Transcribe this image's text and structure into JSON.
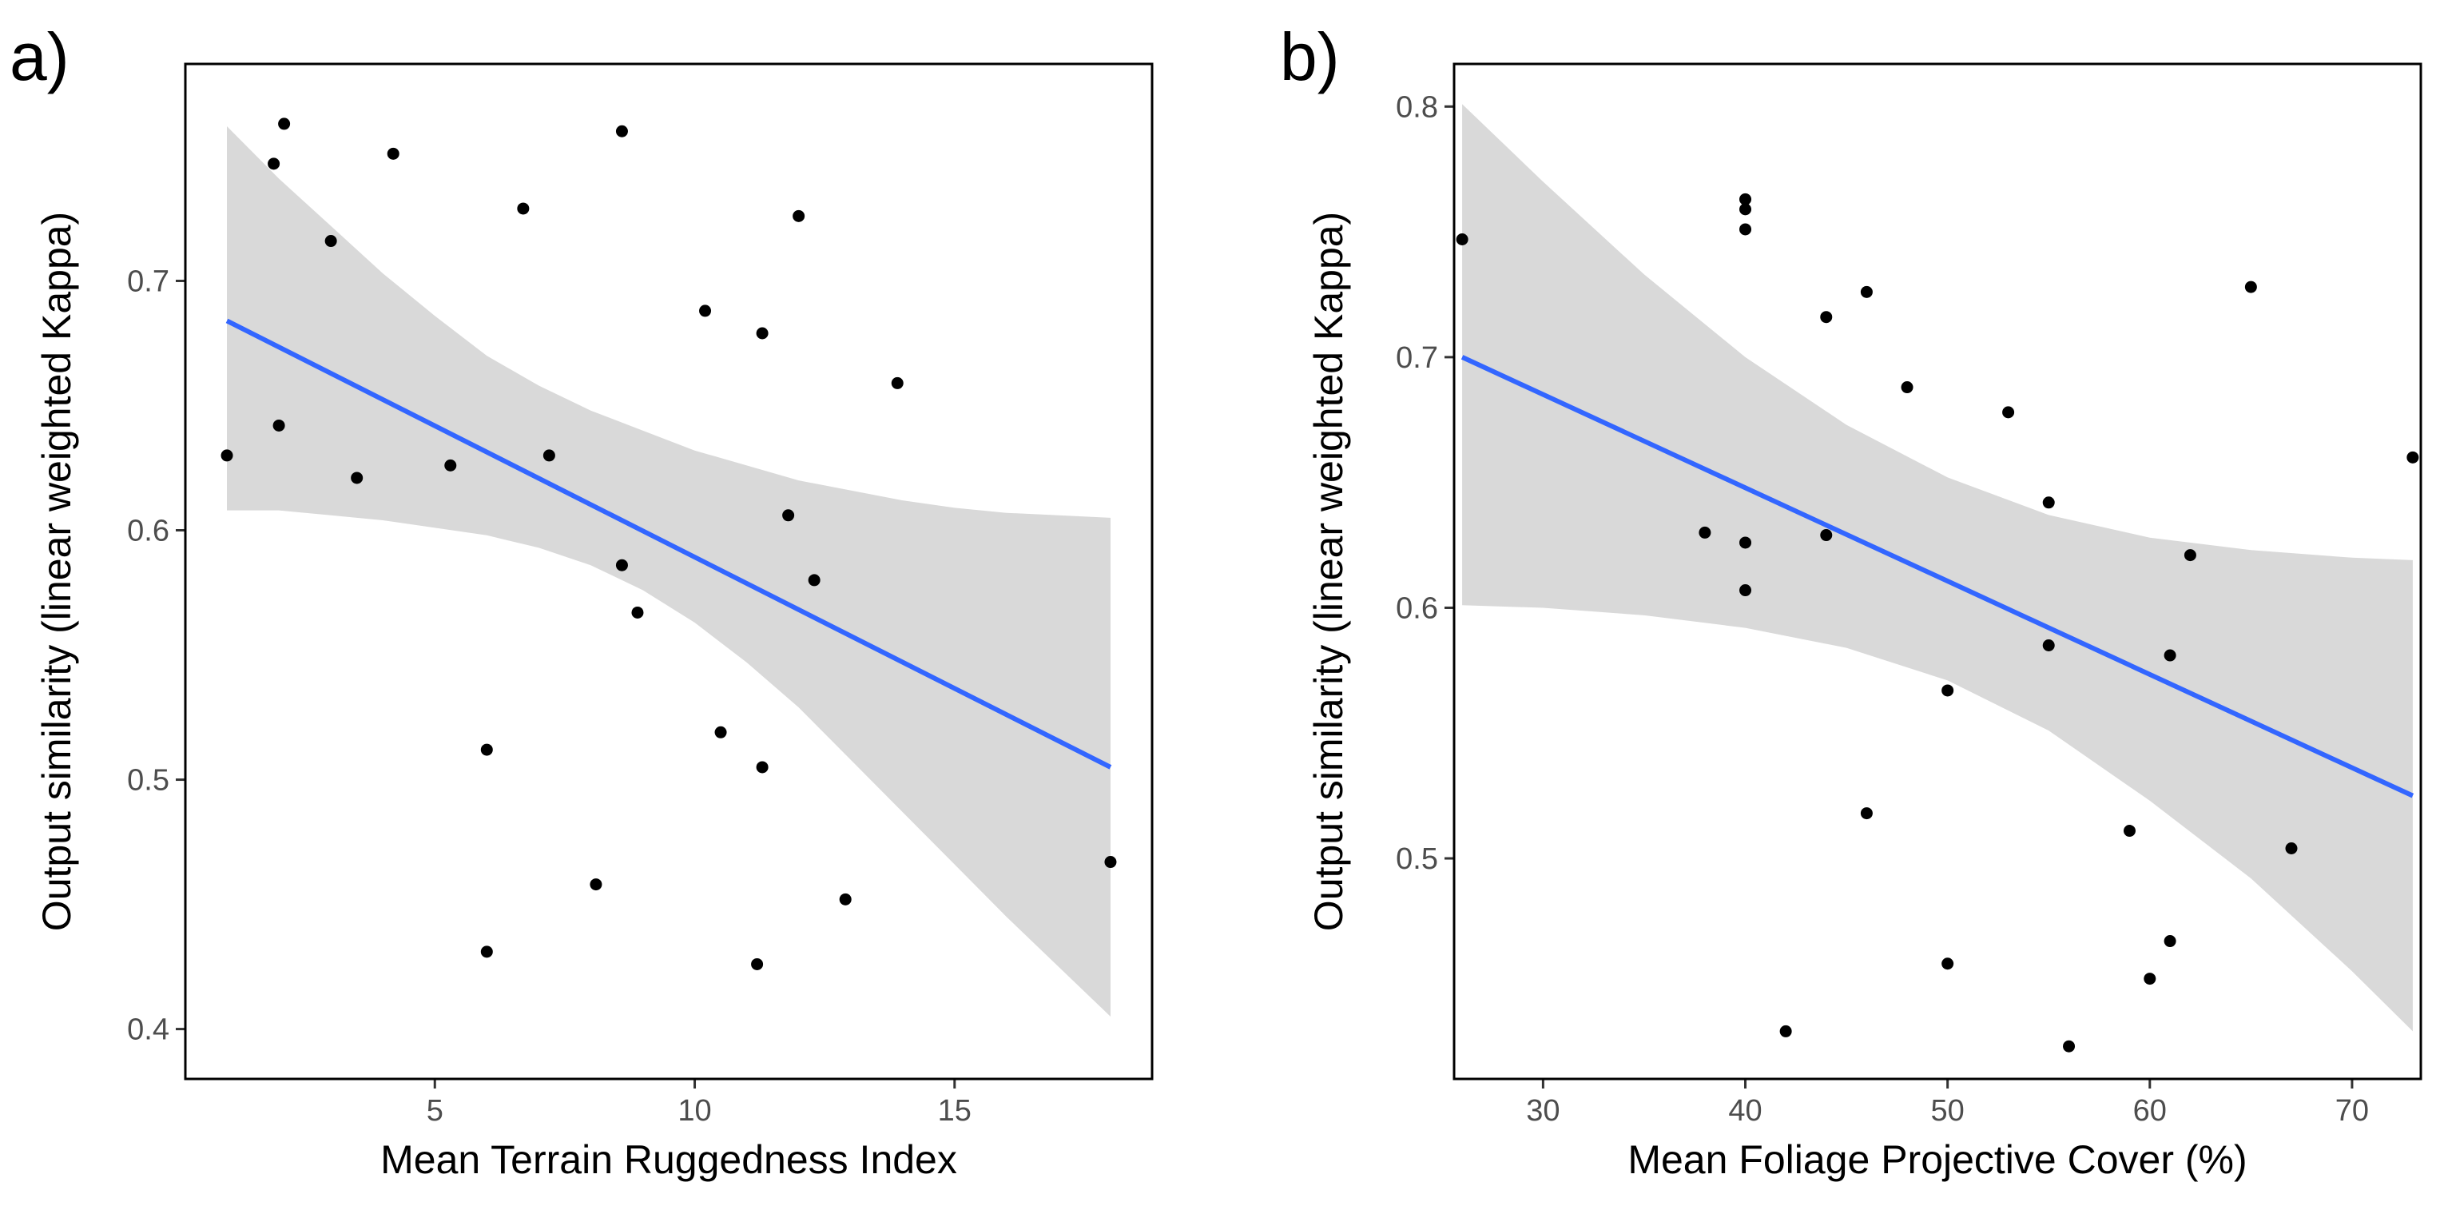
{
  "chart_data": [
    {
      "type": "scatter",
      "panel_label": "a)",
      "xlabel": "Mean Terrain Ruggedness Index",
      "ylabel": "Output similarity (linear weighted Kappa)",
      "xlim": [
        0.2,
        18.8
      ],
      "ylim": [
        0.38,
        0.787
      ],
      "xticks": [
        5,
        10,
        15
      ],
      "yticks": [
        0.4,
        0.5,
        0.6,
        0.7
      ],
      "grid": false,
      "points": [
        {
          "x": 1.0,
          "y": 0.63
        },
        {
          "x": 1.9,
          "y": 0.747
        },
        {
          "x": 2.1,
          "y": 0.763
        },
        {
          "x": 2.0,
          "y": 0.642
        },
        {
          "x": 3.0,
          "y": 0.716
        },
        {
          "x": 3.5,
          "y": 0.621
        },
        {
          "x": 4.2,
          "y": 0.751
        },
        {
          "x": 5.3,
          "y": 0.626
        },
        {
          "x": 6.0,
          "y": 0.512
        },
        {
          "x": 6.0,
          "y": 0.431
        },
        {
          "x": 6.7,
          "y": 0.729
        },
        {
          "x": 7.2,
          "y": 0.63
        },
        {
          "x": 8.1,
          "y": 0.458
        },
        {
          "x": 8.6,
          "y": 0.76
        },
        {
          "x": 8.6,
          "y": 0.586
        },
        {
          "x": 8.9,
          "y": 0.567
        },
        {
          "x": 10.2,
          "y": 0.688
        },
        {
          "x": 10.5,
          "y": 0.519
        },
        {
          "x": 11.3,
          "y": 0.679
        },
        {
          "x": 11.2,
          "y": 0.426
        },
        {
          "x": 11.3,
          "y": 0.505
        },
        {
          "x": 11.8,
          "y": 0.606
        },
        {
          "x": 12.0,
          "y": 0.726
        },
        {
          "x": 12.3,
          "y": 0.58
        },
        {
          "x": 12.9,
          "y": 0.452
        },
        {
          "x": 13.9,
          "y": 0.659
        },
        {
          "x": 18.0,
          "y": 0.467
        }
      ],
      "fit": {
        "x": [
          1.0,
          18.0
        ],
        "y": [
          0.684,
          0.505
        ]
      },
      "band": {
        "x": [
          1.0,
          2.0,
          3.0,
          4.0,
          5.0,
          6.0,
          7.0,
          8.0,
          9.0,
          10.0,
          11.0,
          12.0,
          13.0,
          14.0,
          15.0,
          16.0,
          17.0,
          18.0
        ],
        "upper": [
          0.762,
          0.741,
          0.722,
          0.703,
          0.686,
          0.67,
          0.658,
          0.648,
          0.64,
          0.632,
          0.626,
          0.62,
          0.616,
          0.612,
          0.609,
          0.607,
          0.606,
          0.605
        ],
        "lower": [
          0.608,
          0.608,
          0.606,
          0.604,
          0.601,
          0.598,
          0.593,
          0.586,
          0.576,
          0.563,
          0.547,
          0.529,
          0.508,
          0.487,
          0.466,
          0.445,
          0.425,
          0.405
        ]
      },
      "colors": {
        "points": "#000000",
        "fit": "#3366ff",
        "band": "#d9d9d9"
      }
    },
    {
      "type": "scatter",
      "panel_label": "b)",
      "xlabel": "Mean Foliage Projective Cover (%)",
      "ylabel": "Output similarity (linear weighted Kappa)",
      "xlim": [
        25.6,
        73.4
      ],
      "ylim": [
        0.412,
        0.817
      ],
      "xticks": [
        30,
        40,
        50,
        60,
        70
      ],
      "yticks": [
        0.5,
        0.6,
        0.7,
        0.8
      ],
      "grid": false,
      "points": [
        {
          "x": 26.0,
          "y": 0.747
        },
        {
          "x": 38.0,
          "y": 0.63
        },
        {
          "x": 40.0,
          "y": 0.763
        },
        {
          "x": 40.0,
          "y": 0.759
        },
        {
          "x": 40.0,
          "y": 0.751
        },
        {
          "x": 40.0,
          "y": 0.626
        },
        {
          "x": 40.0,
          "y": 0.607
        },
        {
          "x": 42.0,
          "y": 0.431
        },
        {
          "x": 44.0,
          "y": 0.716
        },
        {
          "x": 44.0,
          "y": 0.629
        },
        {
          "x": 46.0,
          "y": 0.726
        },
        {
          "x": 46.0,
          "y": 0.518
        },
        {
          "x": 48.0,
          "y": 0.688
        },
        {
          "x": 50.0,
          "y": 0.567
        },
        {
          "x": 50.0,
          "y": 0.458
        },
        {
          "x": 53.0,
          "y": 0.678
        },
        {
          "x": 55.0,
          "y": 0.642
        },
        {
          "x": 55.0,
          "y": 0.585
        },
        {
          "x": 56.0,
          "y": 0.425
        },
        {
          "x": 59.0,
          "y": 0.511
        },
        {
          "x": 60.0,
          "y": 0.452
        },
        {
          "x": 61.0,
          "y": 0.581
        },
        {
          "x": 61.0,
          "y": 0.467
        },
        {
          "x": 62.0,
          "y": 0.621
        },
        {
          "x": 65.0,
          "y": 0.728
        },
        {
          "x": 67.0,
          "y": 0.504
        },
        {
          "x": 73.0,
          "y": 0.66
        }
      ],
      "fit": {
        "x": [
          26.0,
          73.0
        ],
        "y": [
          0.7,
          0.525
        ]
      },
      "band": {
        "x": [
          26,
          30,
          35,
          40,
          45,
          50,
          55,
          60,
          65,
          70,
          73
        ],
        "upper": [
          0.801,
          0.77,
          0.733,
          0.7,
          0.673,
          0.652,
          0.637,
          0.628,
          0.623,
          0.62,
          0.619
        ],
        "lower": [
          0.601,
          0.6,
          0.597,
          0.592,
          0.584,
          0.571,
          0.551,
          0.523,
          0.492,
          0.455,
          0.431
        ]
      },
      "colors": {
        "points": "#000000",
        "fit": "#3366ff",
        "band": "#d9d9d9"
      }
    }
  ]
}
